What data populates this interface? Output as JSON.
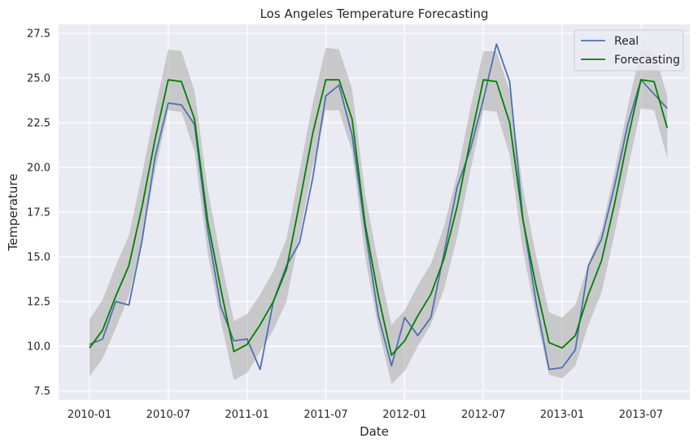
{
  "chart_data": {
    "type": "line",
    "title": "Los Angeles Temperature Forecasting",
    "xlabel": "Date",
    "ylabel": "Temperature",
    "ylim": [
      7.0,
      28.0
    ],
    "y_ticks": [
      "7.5",
      "10.0",
      "12.5",
      "15.0",
      "17.5",
      "20.0",
      "22.5",
      "25.0",
      "27.5"
    ],
    "x_ticks": [
      "2010-01",
      "2010-07",
      "2011-01",
      "2011-07",
      "2012-01",
      "2012-07",
      "2013-01",
      "2013-07"
    ],
    "grid": true,
    "legend_position": "top-right",
    "dates": [
      "2010-01",
      "2010-02",
      "2010-03",
      "2010-04",
      "2010-05",
      "2010-06",
      "2010-07",
      "2010-08",
      "2010-09",
      "2010-10",
      "2010-11",
      "2010-12",
      "2011-01",
      "2011-02",
      "2011-03",
      "2011-04",
      "2011-05",
      "2011-06",
      "2011-07",
      "2011-08",
      "2011-09",
      "2011-10",
      "2011-11",
      "2011-12",
      "2012-01",
      "2012-02",
      "2012-03",
      "2012-04",
      "2012-05",
      "2012-06",
      "2012-07",
      "2012-08",
      "2012-09",
      "2012-10",
      "2012-11",
      "2012-12",
      "2013-01",
      "2013-02",
      "2013-03",
      "2013-04",
      "2013-05",
      "2013-06",
      "2013-07",
      "2013-08",
      "2013-09"
    ],
    "series": [
      {
        "name": "Real",
        "color": "#4c72b0",
        "values": [
          10.1,
          10.4,
          12.5,
          12.3,
          15.9,
          20.6,
          23.6,
          23.5,
          22.4,
          16.5,
          12.2,
          10.3,
          10.4,
          8.7,
          12.5,
          14.5,
          15.8,
          19.4,
          24.0,
          24.6,
          21.8,
          16.5,
          11.7,
          8.9,
          11.6,
          10.6,
          11.6,
          15.2,
          18.9,
          21.0,
          23.8,
          26.9,
          24.8,
          17.2,
          12.5,
          8.7,
          8.8,
          9.8,
          14.5,
          16.0,
          19.0,
          22.4,
          24.9,
          24.1,
          23.3
        ]
      },
      {
        "name": "Forecasting",
        "color": "#008000",
        "values": [
          9.9,
          10.9,
          12.8,
          14.5,
          17.8,
          21.6,
          24.9,
          24.8,
          22.7,
          17.0,
          13.2,
          9.7,
          10.1,
          11.2,
          12.5,
          14.3,
          18.0,
          21.9,
          24.9,
          24.9,
          22.7,
          16.8,
          12.8,
          9.5,
          10.3,
          11.7,
          12.9,
          14.9,
          17.8,
          21.5,
          24.9,
          24.8,
          22.5,
          17.1,
          13.4,
          10.2,
          9.9,
          10.6,
          12.9,
          14.8,
          18.0,
          21.6,
          24.9,
          24.8,
          22.2
        ]
      }
    ],
    "confidence_band": {
      "color": "#b0b0b0",
      "lower": [
        8.3,
        9.3,
        11.0,
        12.8,
        16.0,
        19.8,
        23.2,
        23.1,
        20.9,
        15.2,
        11.4,
        8.1,
        8.5,
        9.7,
        10.9,
        12.5,
        16.2,
        20.0,
        23.2,
        23.2,
        20.9,
        15.0,
        11.0,
        7.9,
        8.6,
        10.0,
        11.2,
        13.2,
        16.1,
        19.8,
        23.2,
        23.1,
        20.7,
        15.4,
        11.7,
        8.4,
        8.2,
        8.9,
        11.2,
        13.0,
        16.3,
        19.9,
        23.3,
        23.2,
        20.5
      ],
      "upper": [
        11.5,
        12.6,
        14.5,
        16.2,
        19.6,
        23.3,
        26.6,
        26.5,
        24.3,
        18.8,
        14.9,
        11.4,
        11.8,
        12.9,
        14.2,
        16.0,
        19.8,
        23.6,
        26.7,
        26.6,
        24.4,
        18.5,
        14.6,
        11.2,
        12.0,
        13.4,
        14.6,
        16.7,
        19.6,
        23.3,
        26.5,
        26.5,
        24.3,
        18.9,
        15.1,
        11.9,
        11.6,
        12.3,
        14.6,
        16.5,
        19.8,
        23.4,
        26.6,
        26.5,
        24.0
      ]
    }
  }
}
